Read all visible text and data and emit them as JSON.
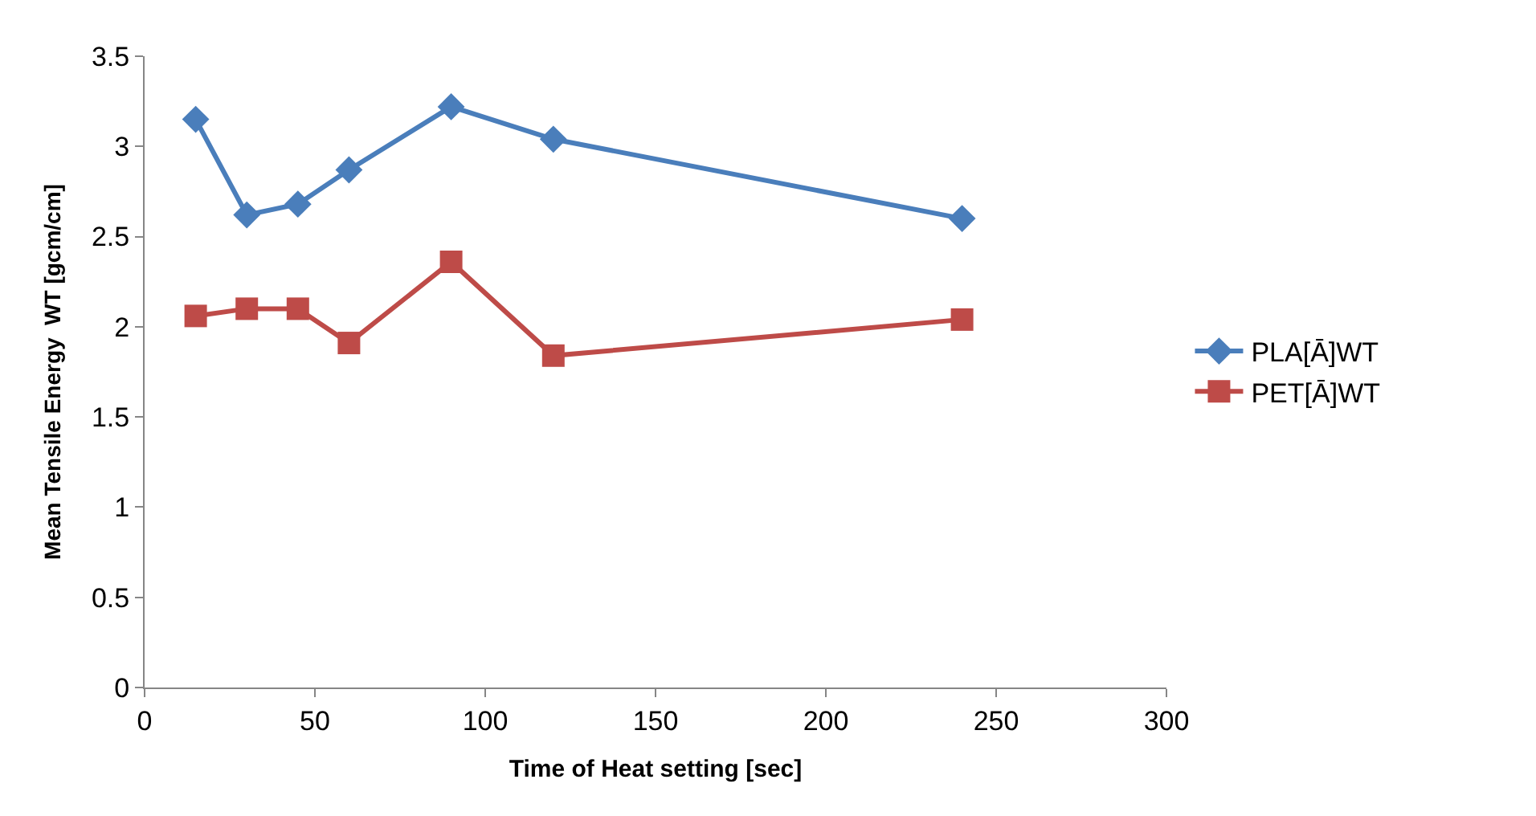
{
  "chart_data": {
    "type": "line",
    "xlabel": "Time of Heat setting [sec]",
    "ylabel": "Mean Tensile Energy  WT [gcm/cm]",
    "x": [
      15,
      30,
      45,
      60,
      90,
      120,
      240
    ],
    "series": [
      {
        "name": "PLA[Ā]WT",
        "color": "#4a7ebb",
        "marker": "diamond",
        "values": [
          3.15,
          2.62,
          2.68,
          2.87,
          3.22,
          3.04,
          2.6
        ]
      },
      {
        "name": "PET[Ā]WT",
        "color": "#be4b48",
        "marker": "square",
        "values": [
          2.06,
          2.1,
          2.1,
          1.91,
          2.36,
          1.84,
          2.04
        ]
      }
    ],
    "xlim": [
      0,
      300
    ],
    "xticks": [
      0,
      50,
      100,
      150,
      200,
      250,
      300
    ],
    "ylim": [
      0,
      3.5
    ],
    "yticks": [
      0,
      0.5,
      1,
      1.5,
      2,
      2.5,
      3,
      3.5
    ],
    "legend": "right",
    "line_style": "solid"
  }
}
